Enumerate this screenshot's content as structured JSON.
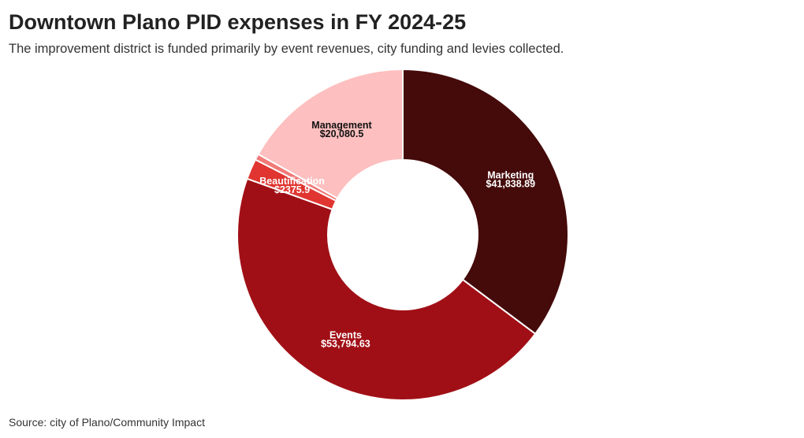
{
  "chart_data": {
    "type": "donut",
    "title": "Downtown Plano PID expenses in FY 2024-25",
    "subtitle": "The improvement district is funded primarily by event revenues, city funding and levies collected.",
    "source": "Source: city of Plano/Community Impact",
    "categories": [
      "Marketing",
      "Events",
      "Beautification",
      null,
      "Management"
    ],
    "values": [
      41838.89,
      53794.63,
      2375.9,
      700,
      20080.5
    ],
    "value_labels": [
      "$41,838.89",
      "$53,794.63",
      "$2375.9",
      null,
      "$20,080.5"
    ],
    "colors": [
      "#450a0a",
      "#a10f16",
      "#e03530",
      "#f07a78",
      "#fdbfbf"
    ],
    "label_colors": [
      "#ffffff",
      "#ffffff",
      "#ffffff",
      null,
      "#111111"
    ]
  }
}
